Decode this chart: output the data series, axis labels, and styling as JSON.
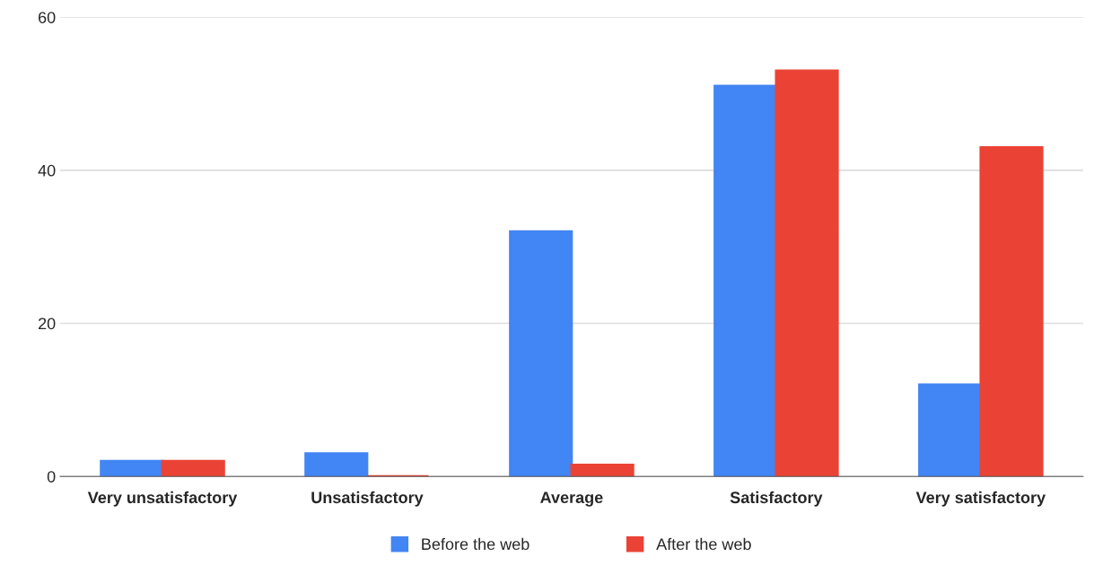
{
  "chart_data": {
    "type": "bar",
    "categories": [
      "Very unsatisfactory",
      "Unsatisfactory",
      "Average",
      "Satisfactory",
      "Very satisfactory"
    ],
    "series": [
      {
        "name": "Before the web",
        "color": "#4285f4",
        "values": [
          2,
          3,
          32,
          51,
          12
        ]
      },
      {
        "name": "After the web",
        "color": "#ea4335",
        "values": [
          2,
          0,
          1.5,
          53,
          43
        ]
      }
    ],
    "ylim": [
      0,
      60
    ],
    "yticks": [
      0,
      20,
      40,
      60
    ],
    "grid": "y",
    "legend": "bottom"
  }
}
